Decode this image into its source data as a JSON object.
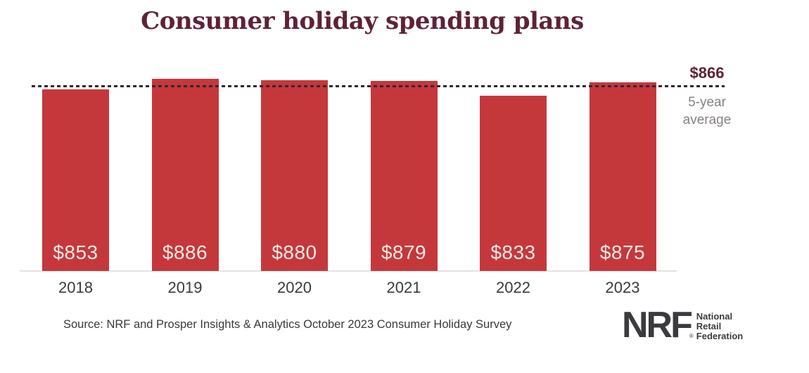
{
  "title": "Consumer holiday spending plans",
  "chart_data": {
    "type": "bar",
    "title": "Consumer holiday spending plans",
    "categories": [
      "2018",
      "2019",
      "2020",
      "2021",
      "2022",
      "2023"
    ],
    "values": [
      853,
      886,
      880,
      879,
      833,
      875
    ],
    "value_labels": [
      "$853",
      "$886",
      "$880",
      "$879",
      "$833",
      "$875"
    ],
    "xlabel": "",
    "ylabel": "",
    "grid": false,
    "legend": false,
    "axis_truncated": true,
    "annotation_line": {
      "value": 866,
      "label": "$866",
      "description": "5-year average",
      "style": "dashed"
    },
    "colors": {
      "bar": "#C4383C",
      "bar_value_text": "#F3E9E4",
      "title": "#5E2237",
      "annotation_value": "#5E2237",
      "annotation_description": "#868086",
      "dashed_line": "#35252D",
      "baseline": "#E6E1E0",
      "year_label": "#3A393B"
    }
  },
  "average": {
    "value_label": "$866",
    "description": "5-year average"
  },
  "footer": {
    "source": "Source: NRF and Prosper Insights & Analytics October 2023 Consumer Holiday Survey"
  },
  "logo": {
    "acronym": "NRF",
    "registered_mark": "®",
    "lines": [
      "National",
      "Retail",
      "Federation"
    ],
    "color": "#3B3A3E"
  }
}
